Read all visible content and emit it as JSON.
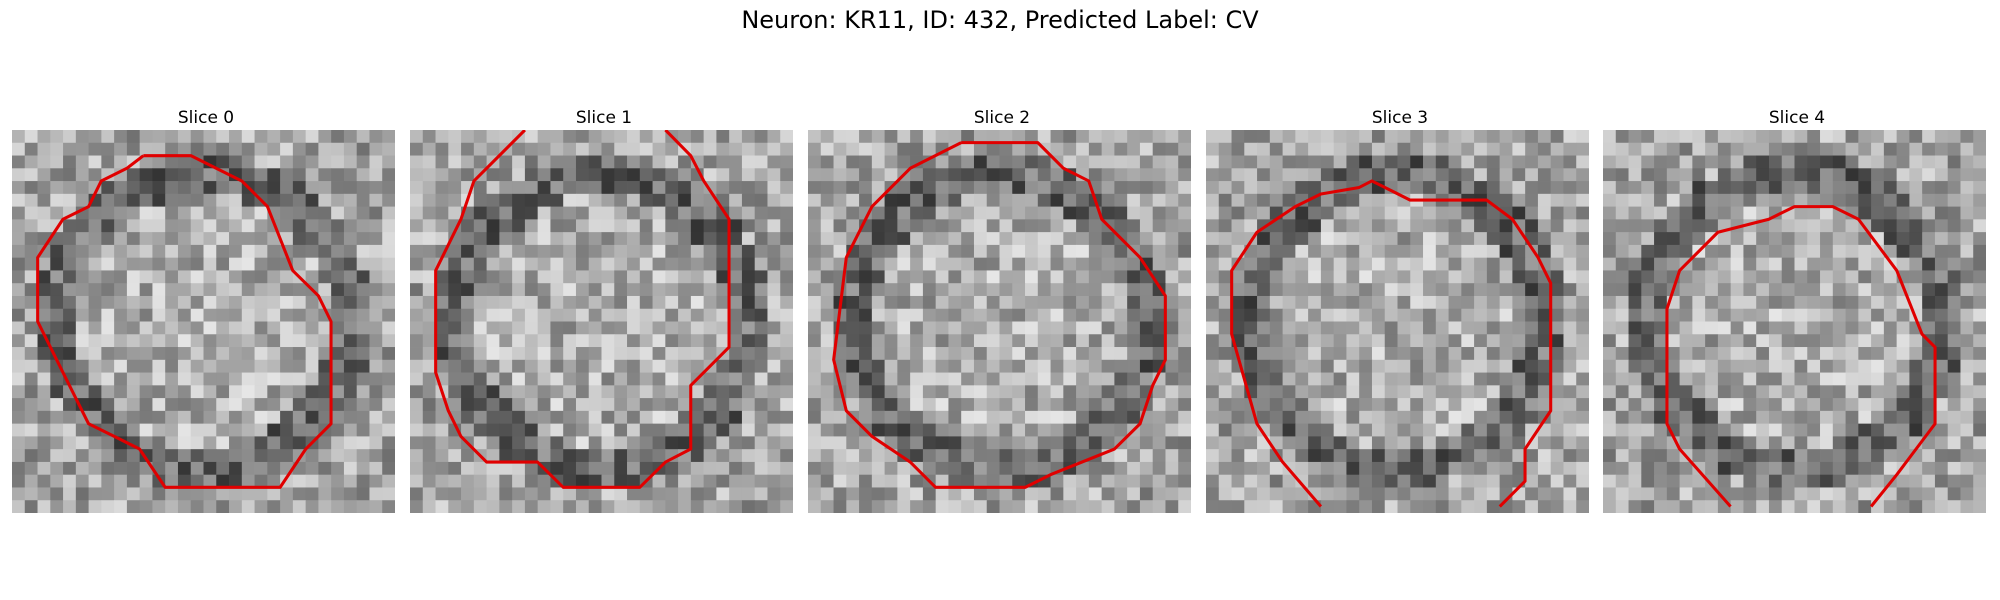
{
  "figure": {
    "title": "Neuron: KR11, ID: 432, Predicted Label: CV"
  },
  "panels": [
    {
      "title": "Slice 0",
      "contour_color": "#e00000",
      "contour": [
        [
          0.343,
          0.067
        ],
        [
          0.467,
          0.067
        ],
        [
          0.533,
          0.1
        ],
        [
          0.6,
          0.133
        ],
        [
          0.667,
          0.2
        ],
        [
          0.733,
          0.367
        ],
        [
          0.8,
          0.433
        ],
        [
          0.833,
          0.5
        ],
        [
          0.833,
          0.767
        ],
        [
          0.767,
          0.833
        ],
        [
          0.7,
          0.933
        ],
        [
          0.4,
          0.933
        ],
        [
          0.333,
          0.833
        ],
        [
          0.267,
          0.8
        ],
        [
          0.2,
          0.767
        ],
        [
          0.133,
          0.633
        ],
        [
          0.067,
          0.5
        ],
        [
          0.067,
          0.333
        ],
        [
          0.133,
          0.233
        ],
        [
          0.2,
          0.2
        ],
        [
          0.233,
          0.133
        ],
        [
          0.3,
          0.1
        ],
        [
          0.343,
          0.067
        ]
      ]
    },
    {
      "title": "Slice 1",
      "contour_color": "#e00000",
      "contour": [
        [
          0.3,
          0
        ],
        [
          0.167,
          0.133
        ],
        [
          0.133,
          0.233
        ],
        [
          0.067,
          0.367
        ],
        [
          0.067,
          0.633
        ],
        [
          0.1,
          0.733
        ],
        [
          0.133,
          0.8
        ],
        [
          0.2,
          0.867
        ],
        [
          0.333,
          0.867
        ],
        [
          0.4,
          0.933
        ],
        [
          0.6,
          0.933
        ],
        [
          0.667,
          0.867
        ],
        [
          0.733,
          0.833
        ],
        [
          0.733,
          0.667
        ],
        [
          0.833,
          0.567
        ],
        [
          0.833,
          0.233
        ],
        [
          0.767,
          0.133
        ],
        [
          0.733,
          0.067
        ],
        [
          0.667,
          0
        ]
      ]
    },
    {
      "title": "Slice 2",
      "contour_color": "#e00000",
      "contour": [
        [
          0.4,
          0.033
        ],
        [
          0.6,
          0.033
        ],
        [
          0.667,
          0.1
        ],
        [
          0.733,
          0.133
        ],
        [
          0.767,
          0.233
        ],
        [
          0.867,
          0.333
        ],
        [
          0.933,
          0.433
        ],
        [
          0.933,
          0.6
        ],
        [
          0.9,
          0.667
        ],
        [
          0.867,
          0.767
        ],
        [
          0.8,
          0.833
        ],
        [
          0.633,
          0.9
        ],
        [
          0.567,
          0.933
        ],
        [
          0.333,
          0.933
        ],
        [
          0.267,
          0.867
        ],
        [
          0.167,
          0.8
        ],
        [
          0.1,
          0.733
        ],
        [
          0.067,
          0.6
        ],
        [
          0.1,
          0.333
        ],
        [
          0.167,
          0.2
        ],
        [
          0.267,
          0.1
        ],
        [
          0.4,
          0.033
        ]
      ]
    },
    {
      "title": "Slice 3",
      "contour_color": "#e00000",
      "contour": [
        [
          0.3,
          0.983
        ],
        [
          0.2,
          0.867
        ],
        [
          0.133,
          0.767
        ],
        [
          0.067,
          0.533
        ],
        [
          0.067,
          0.367
        ],
        [
          0.133,
          0.267
        ],
        [
          0.233,
          0.2
        ],
        [
          0.3,
          0.167
        ],
        [
          0.4,
          0.15
        ],
        [
          0.433,
          0.133
        ],
        [
          0.533,
          0.183
        ],
        [
          0.733,
          0.183
        ],
        [
          0.8,
          0.233
        ],
        [
          0.867,
          0.333
        ],
        [
          0.9,
          0.4
        ],
        [
          0.9,
          0.733
        ],
        [
          0.833,
          0.833
        ],
        [
          0.833,
          0.917
        ],
        [
          0.767,
          0.983
        ]
      ]
    },
    {
      "title": "Slice 4",
      "contour_color": "#e00000",
      "contour": [
        [
          0.333,
          0.983
        ],
        [
          0.2,
          0.833
        ],
        [
          0.167,
          0.767
        ],
        [
          0.167,
          0.467
        ],
        [
          0.2,
          0.367
        ],
        [
          0.3,
          0.267
        ],
        [
          0.433,
          0.233
        ],
        [
          0.5,
          0.2
        ],
        [
          0.6,
          0.2
        ],
        [
          0.667,
          0.233
        ],
        [
          0.767,
          0.367
        ],
        [
          0.833,
          0.533
        ],
        [
          0.867,
          0.567
        ],
        [
          0.867,
          0.767
        ],
        [
          0.767,
          0.9
        ],
        [
          0.7,
          0.983
        ]
      ]
    }
  ]
}
